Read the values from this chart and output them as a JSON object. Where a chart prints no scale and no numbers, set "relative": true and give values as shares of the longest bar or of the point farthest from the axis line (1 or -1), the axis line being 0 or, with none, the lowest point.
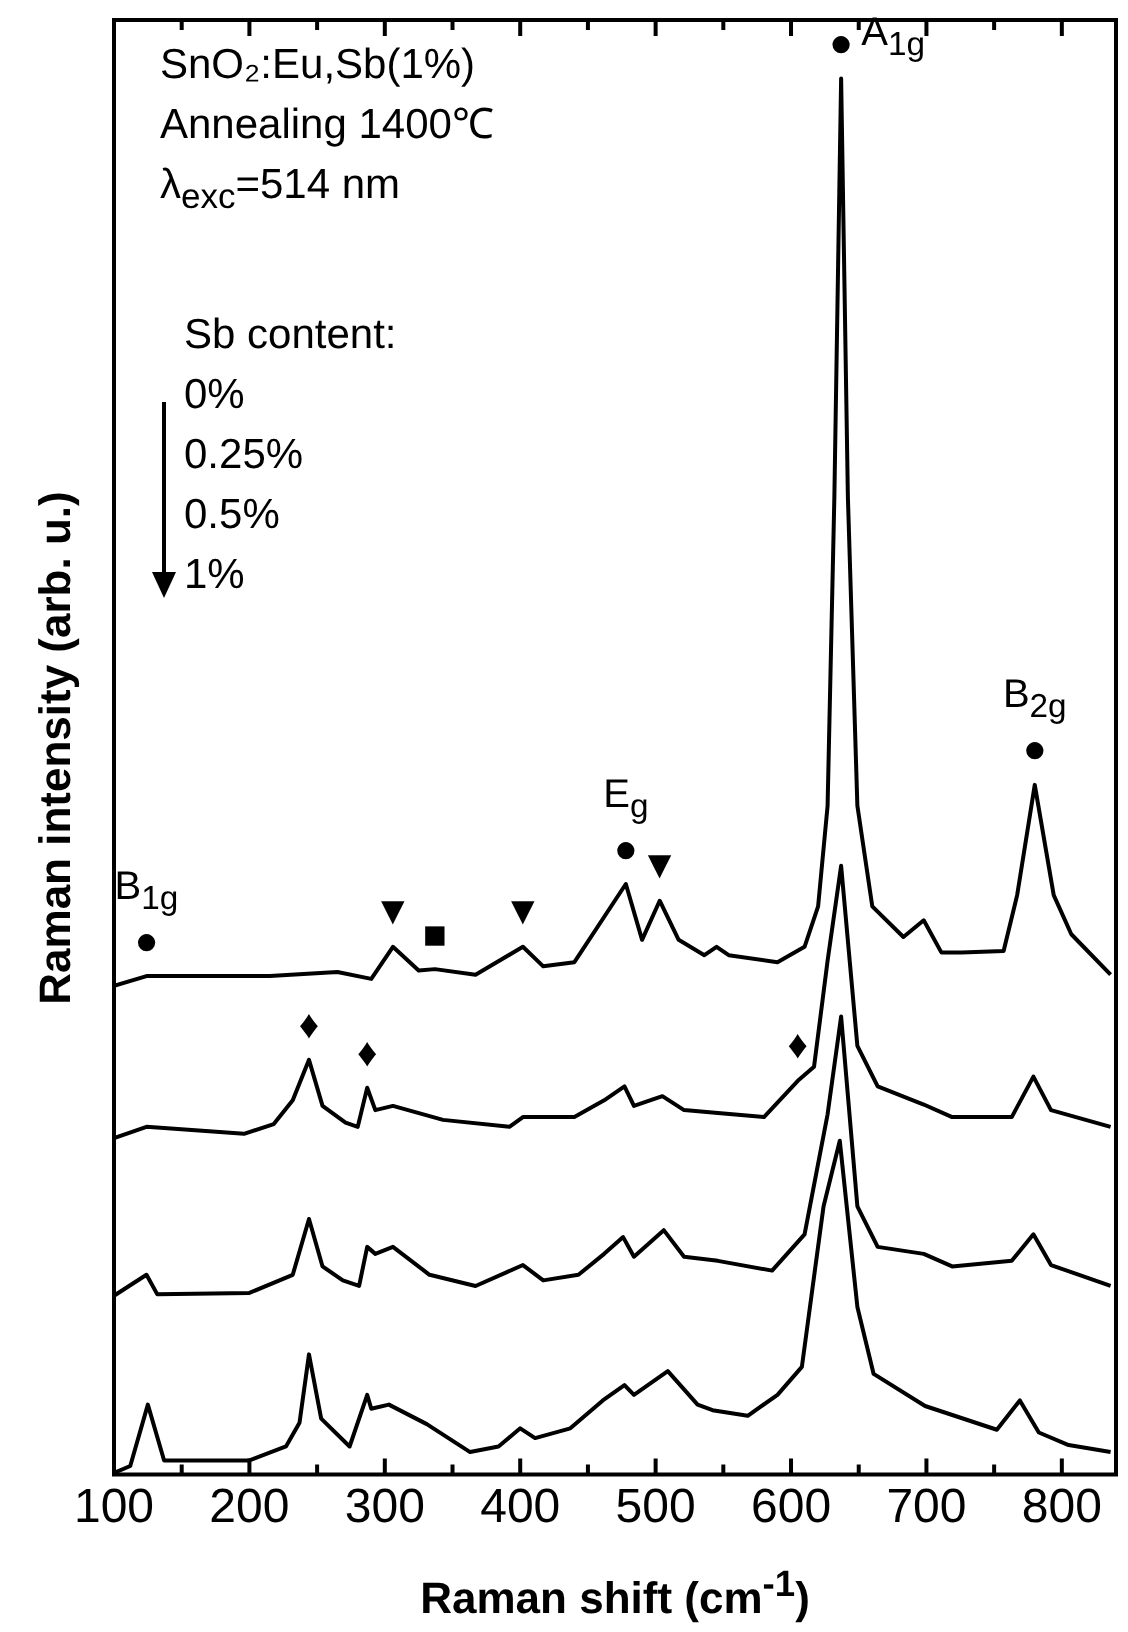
{
  "chart_data": {
    "type": "line",
    "relative": true,
    "xlabel": "Raman shift (cm$^{-1}$)",
    "ylabel": "Raman intensity (arb. u.)",
    "xlim": [
      100,
      840
    ],
    "xticks": [
      100,
      {
        "value": 150,
        "label": null
      },
      200,
      {
        "value": 250,
        "label": null
      },
      300,
      {
        "value": 350,
        "label": null
      },
      400,
      {
        "value": 450,
        "label": null
      },
      500,
      {
        "value": 550,
        "label": null
      },
      600,
      {
        "value": 650,
        "label": null
      },
      700,
      {
        "value": 750,
        "label": null
      },
      800
    ],
    "tick_labels": "x",
    "grid": false,
    "legend": false,
    "marker": "none",
    "line_style": "solid",
    "series": [
      {
        "color": "#000000",
        "x": [
          100,
          124,
          215,
          265,
          290,
          306,
          325,
          337,
          367,
          402,
          417,
          440,
          478,
          490,
          503,
          517,
          536,
          545,
          554,
          590,
          610,
          620,
          627,
          632,
          637,
          642,
          649,
          660,
          683,
          698,
          711,
          726,
          757,
          767,
          780,
          794,
          807,
          836
        ],
        "values": [
          0.35,
          0.357,
          0.357,
          0.36,
          0.355,
          0.378,
          0.361,
          0.362,
          0.358,
          0.378,
          0.364,
          0.367,
          0.423,
          0.383,
          0.411,
          0.383,
          0.372,
          0.378,
          0.372,
          0.367,
          0.378,
          0.407,
          0.479,
          0.7,
          1.0,
          0.7,
          0.479,
          0.407,
          0.385,
          0.397,
          0.374,
          0.374,
          0.375,
          0.415,
          0.494,
          0.415,
          0.387,
          0.358
        ]
      },
      {
        "color": "#000000",
        "x": [
          100,
          124,
          196,
          218,
          232,
          244,
          254,
          271,
          280,
          287,
          293,
          306,
          343,
          392,
          402,
          440,
          462,
          477,
          484,
          505,
          521,
          546,
          580,
          605,
          617,
          627,
          637,
          649,
          664,
          698,
          719,
          763,
          779,
          792,
          836
        ],
        "values": [
          0.241,
          0.249,
          0.244,
          0.251,
          0.268,
          0.297,
          0.264,
          0.252,
          0.249,
          0.277,
          0.261,
          0.264,
          0.254,
          0.249,
          0.256,
          0.256,
          0.268,
          0.278,
          0.264,
          0.271,
          0.261,
          0.259,
          0.256,
          0.282,
          0.292,
          0.368,
          0.436,
          0.307,
          0.278,
          0.265,
          0.256,
          0.256,
          0.285,
          0.261,
          0.249
        ]
      },
      {
        "color": "#000000",
        "x": [
          100,
          124,
          132,
          200,
          232,
          244,
          254,
          269,
          281,
          287,
          293,
          306,
          333,
          367,
          402,
          417,
          443,
          462,
          476,
          484,
          506,
          521,
          546,
          586,
          610,
          627,
          637,
          649,
          664,
          698,
          719,
          763,
          779,
          792,
          836
        ],
        "values": [
          0.128,
          0.143,
          0.129,
          0.13,
          0.143,
          0.183,
          0.149,
          0.139,
          0.135,
          0.163,
          0.158,
          0.163,
          0.143,
          0.135,
          0.15,
          0.139,
          0.143,
          0.158,
          0.17,
          0.156,
          0.175,
          0.156,
          0.153,
          0.146,
          0.172,
          0.258,
          0.328,
          0.192,
          0.163,
          0.158,
          0.149,
          0.153,
          0.172,
          0.15,
          0.135
        ]
      },
      {
        "color": "#000000",
        "x": [
          100,
          112,
          125,
          137,
          200,
          227,
          237,
          244,
          253,
          274,
          287,
          290,
          303,
          331,
          363,
          384,
          400,
          411,
          437,
          461,
          477,
          484,
          509,
          531,
          542,
          568,
          590,
          608,
          624,
          636,
          649,
          661,
          699,
          752,
          769,
          783,
          805,
          836
        ],
        "values": [
          0.001,
          0.006,
          0.05,
          0.01,
          0.01,
          0.02,
          0.037,
          0.086,
          0.04,
          0.02,
          0.057,
          0.047,
          0.05,
          0.036,
          0.016,
          0.02,
          0.033,
          0.026,
          0.033,
          0.053,
          0.064,
          0.057,
          0.074,
          0.05,
          0.046,
          0.042,
          0.057,
          0.077,
          0.192,
          0.239,
          0.12,
          0.072,
          0.049,
          0.032,
          0.053,
          0.03,
          0.021,
          0.016
        ]
      }
    ],
    "annotations": [
      "SnO₂:Eu,Sb(1%)",
      "Annealing 1400℃",
      "λ$_{exc}$=514 nm",
      "Sb content:",
      "0%",
      "0.25%",
      "0.5%",
      "1%",
      {
        "text": "●",
        "x": 637,
        "y": 1.0
      },
      {
        "text": "A$_{1g}$",
        "x": 637,
        "y": 1.0
      },
      {
        "text": "●",
        "x": 780,
        "y": 0.494
      },
      {
        "text": "B$_{2g}$",
        "x": 780,
        "y": 0.494
      },
      {
        "text": "●",
        "x": 478,
        "y": 0.423
      },
      {
        "text": "E$_{g}$",
        "x": 478,
        "y": 0.423
      },
      {
        "text": "▼",
        "x": 503,
        "y": 0.411
      },
      {
        "text": "●",
        "x": 124,
        "y": 0.357
      },
      {
        "text": "B$_{1g}$",
        "x": 124,
        "y": 0.357
      },
      {
        "text": "▼",
        "x": 306,
        "y": 0.378
      },
      {
        "text": "■",
        "x": 337,
        "y": 0.362
      },
      {
        "text": "▼",
        "x": 402,
        "y": 0.378
      },
      {
        "text": "♦",
        "x": 244,
        "y": 0.297
      },
      {
        "text": "♦",
        "x": 287,
        "y": 0.277
      },
      {
        "text": "♦",
        "x": 605,
        "y": 0.282
      }
    ]
  }
}
